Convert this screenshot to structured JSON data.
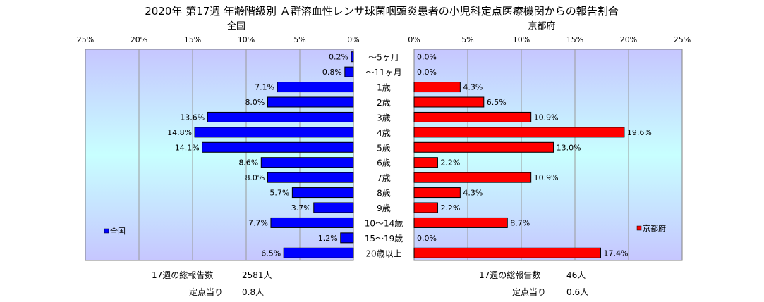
{
  "title": "2020年 第17週 年齢階級別 Ａ群溶血性レンサ球菌咽頭炎患者の小児科定点医療機関からの報告割合",
  "colors": {
    "national": "#0000ff",
    "kyoto": "#ff0000",
    "plot_bg_top": "#c6c6ff",
    "plot_bg_mid": "#c8ffff"
  },
  "footer": {
    "left": {
      "total_label": "17週の総報告数",
      "total_value": "2581人",
      "per_label": "定点当り",
      "per_value": "0.8人"
    },
    "right": {
      "total_label": "17週の総報告数",
      "total_value": "46人",
      "per_label": "定点当り",
      "per_value": "0.6人"
    }
  },
  "chart_data": [
    {
      "type": "bar",
      "orientation": "horizontal",
      "direction": "right-to-left",
      "title": "全国",
      "xlim": [
        0,
        25
      ],
      "xticks": [
        "0%",
        "5%",
        "10%",
        "15%",
        "20%",
        "25%"
      ],
      "grid": true,
      "legend": {
        "entries": [
          "全国"
        ],
        "placement": "left-bottom"
      },
      "categories": [
        "～5ヶ月",
        "～11ヶ月",
        "1歳",
        "2歳",
        "3歳",
        "4歳",
        "5歳",
        "6歳",
        "7歳",
        "8歳",
        "9歳",
        "10～14歳",
        "15～19歳",
        "20歳以上"
      ],
      "series": [
        {
          "name": "全国",
          "values": [
            0.2,
            0.8,
            7.1,
            8.0,
            13.6,
            14.8,
            14.1,
            8.6,
            8.0,
            5.7,
            3.7,
            7.7,
            1.2,
            6.5
          ],
          "labels": [
            "0.2%",
            "0.8%",
            "7.1%",
            "8.0%",
            "13.6%",
            "14.8%",
            "14.1%",
            "8.6%",
            "8.0%",
            "5.7%",
            "3.7%",
            "7.7%",
            "1.2%",
            "6.5%"
          ]
        }
      ]
    },
    {
      "type": "bar",
      "orientation": "horizontal",
      "direction": "left-to-right",
      "title": "京都府",
      "xlim": [
        0,
        25
      ],
      "xticks": [
        "0%",
        "5%",
        "10%",
        "15%",
        "20%",
        "25%"
      ],
      "grid": true,
      "legend": {
        "entries": [
          "京都府"
        ],
        "placement": "right-bottom"
      },
      "categories": [
        "～5ヶ月",
        "～11ヶ月",
        "1歳",
        "2歳",
        "3歳",
        "4歳",
        "5歳",
        "6歳",
        "7歳",
        "8歳",
        "9歳",
        "10～14歳",
        "15～19歳",
        "20歳以上"
      ],
      "series": [
        {
          "name": "京都府",
          "values": [
            0.0,
            0.0,
            4.3,
            6.5,
            10.9,
            19.6,
            13.0,
            2.2,
            10.9,
            4.3,
            2.2,
            8.7,
            0.0,
            17.4
          ],
          "labels": [
            "0.0%",
            "0.0%",
            "4.3%",
            "6.5%",
            "10.9%",
            "19.6%",
            "13.0%",
            "2.2%",
            "10.9%",
            "4.3%",
            "2.2%",
            "8.7%",
            "0.0%",
            "17.4%"
          ]
        }
      ]
    }
  ]
}
